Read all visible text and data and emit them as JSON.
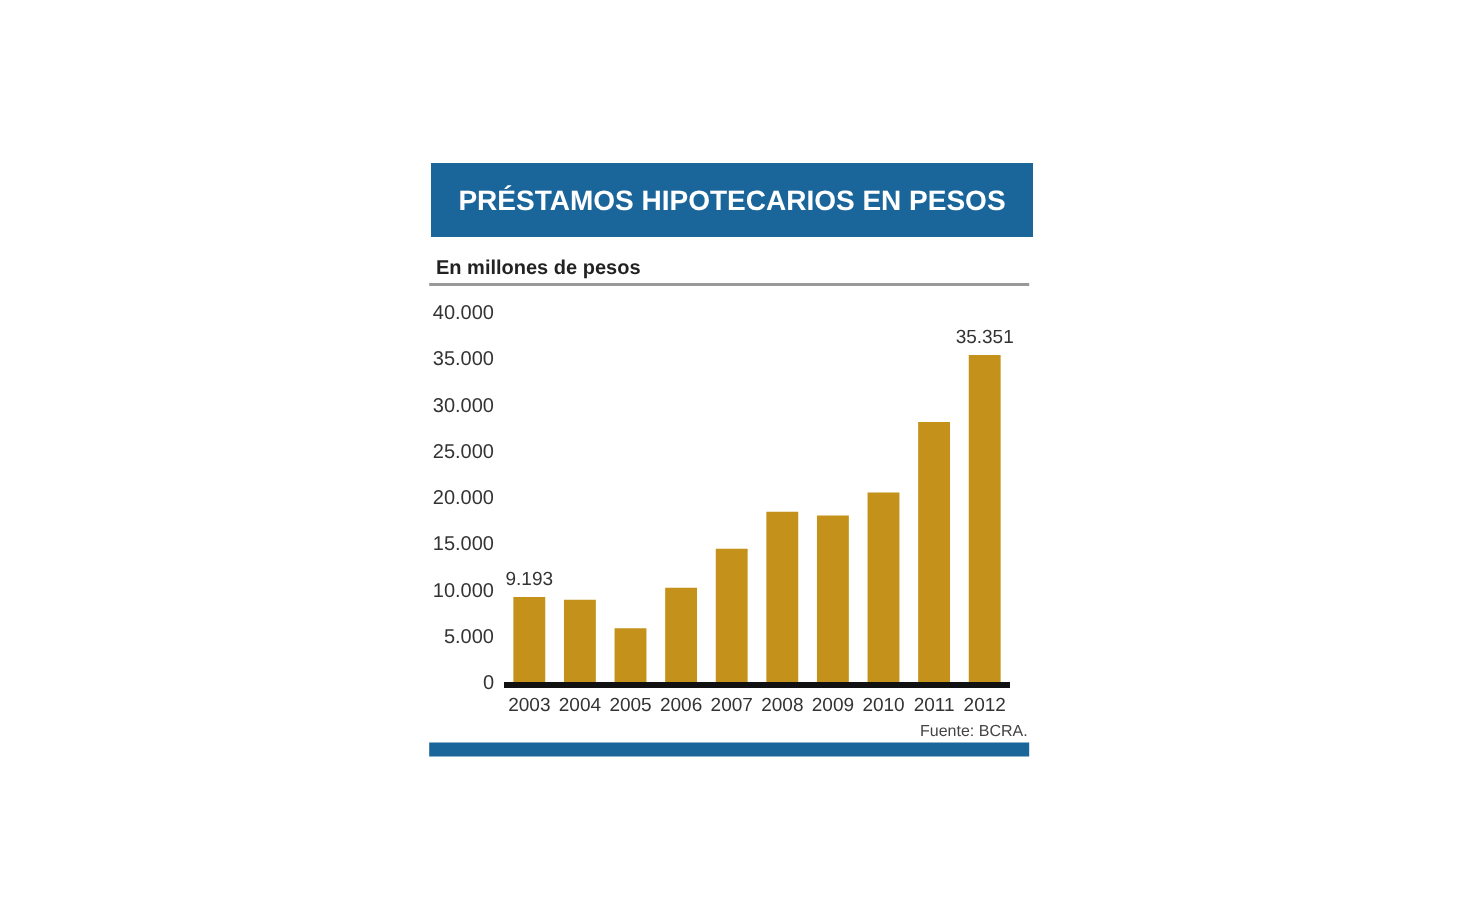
{
  "chart_data": {
    "type": "bar",
    "title": "PRÉSTAMOS HIPOTECARIOS EN PESOS",
    "subtitle": "En millones de pesos",
    "annotations": [
      "Fuente: BCRA."
    ],
    "categories": [
      "2003",
      "2004",
      "2005",
      "2006",
      "2007",
      "2008",
      "2009",
      "2010",
      "2011",
      "2012"
    ],
    "values": [
      9193,
      8900,
      5800,
      10200,
      14400,
      18400,
      18000,
      20500,
      28100,
      35351
    ],
    "value_labels": [
      "9.193",
      null,
      null,
      null,
      null,
      null,
      null,
      null,
      null,
      "35.351"
    ],
    "color": "#c4921a",
    "ylim": [
      0,
      40000
    ],
    "yticks": [
      0,
      {
        "value": 5000,
        "label": "5.000"
      },
      {
        "value": 10000,
        "label": "10.000"
      },
      {
        "value": 15000,
        "label": "15.000"
      },
      {
        "value": 20000,
        "label": "20.000"
      },
      {
        "value": 25000,
        "label": "25.000"
      },
      {
        "value": 30000,
        "label": "30.000"
      },
      {
        "value": 35000,
        "label": "35.000"
      },
      {
        "value": 40000,
        "label": "40.000"
      }
    ]
  }
}
